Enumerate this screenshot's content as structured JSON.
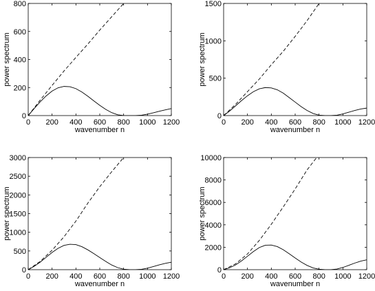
{
  "chart_data": [
    {
      "type": "line",
      "xlabel": "wavenumber n",
      "ylabel": "power spectrum",
      "xlim": [
        0,
        1200
      ],
      "ylim": [
        0,
        800
      ],
      "xticks": [
        0,
        200,
        400,
        600,
        800,
        1000,
        1200
      ],
      "yticks": [
        0,
        200,
        400,
        600,
        800
      ],
      "grid": false,
      "series": [
        {
          "style": "solid",
          "color": "#000000",
          "x": [
            0,
            50,
            100,
            150,
            200,
            250,
            300,
            350,
            400,
            450,
            500,
            550,
            600,
            650,
            700,
            750,
            800,
            850,
            900,
            950,
            1000,
            1050,
            1100,
            1150,
            1200
          ],
          "y": [
            0,
            50,
            98,
            140,
            175,
            198,
            208,
            206,
            192,
            168,
            138,
            105,
            73,
            44,
            21,
            6,
            0,
            0,
            0,
            3,
            10,
            20,
            31,
            41,
            50
          ]
        },
        {
          "style": "dashed",
          "color": "#000000",
          "x": [
            0,
            100,
            200,
            300,
            400,
            500,
            600,
            700,
            800
          ],
          "y": [
            0,
            110,
            215,
            318,
            415,
            510,
            610,
            705,
            800
          ]
        }
      ]
    },
    {
      "type": "line",
      "xlabel": "wavenumber n",
      "ylabel": "power spectrum",
      "xlim": [
        0,
        1200
      ],
      "ylim": [
        0,
        1500
      ],
      "xticks": [
        0,
        200,
        400,
        600,
        800,
        1000,
        1200
      ],
      "yticks": [
        0,
        500,
        1000,
        1500
      ],
      "grid": false,
      "series": [
        {
          "style": "solid",
          "color": "#000000",
          "x": [
            0,
            50,
            100,
            150,
            200,
            250,
            300,
            350,
            400,
            450,
            500,
            550,
            600,
            650,
            700,
            750,
            800,
            850,
            900,
            950,
            1000,
            1050,
            1100,
            1150,
            1200
          ],
          "y": [
            0,
            60,
            130,
            200,
            265,
            320,
            358,
            375,
            370,
            345,
            300,
            240,
            180,
            120,
            68,
            28,
            5,
            0,
            0,
            5,
            22,
            45,
            68,
            88,
            100
          ]
        },
        {
          "style": "dashed",
          "color": "#000000",
          "x": [
            0,
            100,
            200,
            300,
            400,
            500,
            600,
            700,
            800
          ],
          "y": [
            0,
            150,
            320,
            490,
            680,
            860,
            1060,
            1270,
            1500
          ]
        }
      ]
    },
    {
      "type": "line",
      "xlabel": "wavenumber n",
      "ylabel": "power spectrum",
      "xlim": [
        0,
        1200
      ],
      "ylim": [
        0,
        3000
      ],
      "xticks": [
        0,
        200,
        400,
        600,
        800,
        1000,
        1200
      ],
      "yticks": [
        0,
        500,
        1000,
        1500,
        2000,
        2500,
        3000
      ],
      "grid": false,
      "series": [
        {
          "style": "solid",
          "color": "#000000",
          "x": [
            0,
            50,
            100,
            150,
            200,
            250,
            300,
            350,
            400,
            450,
            500,
            550,
            600,
            650,
            700,
            750,
            800,
            850,
            900,
            950,
            1000,
            1050,
            1100,
            1150,
            1200
          ],
          "y": [
            0,
            90,
            200,
            330,
            460,
            570,
            650,
            680,
            670,
            615,
            530,
            430,
            325,
            220,
            125,
            55,
            12,
            0,
            0,
            10,
            40,
            85,
            130,
            170,
            200
          ]
        },
        {
          "style": "dashed",
          "color": "#000000",
          "x": [
            0,
            100,
            200,
            300,
            400,
            500,
            600,
            700,
            800
          ],
          "y": [
            0,
            220,
            520,
            880,
            1300,
            1780,
            2220,
            2620,
            3000
          ]
        }
      ]
    },
    {
      "type": "line",
      "xlabel": "wavenumber n",
      "ylabel": "power spectrum",
      "xlim": [
        0,
        1200
      ],
      "ylim": [
        0,
        10000
      ],
      "xticks": [
        0,
        200,
        400,
        600,
        800,
        1000,
        1200
      ],
      "yticks": [
        0,
        2000,
        4000,
        6000,
        8000,
        10000
      ],
      "grid": false,
      "series": [
        {
          "style": "solid",
          "color": "#000000",
          "x": [
            0,
            50,
            100,
            150,
            200,
            250,
            300,
            350,
            400,
            450,
            500,
            550,
            600,
            650,
            700,
            750,
            800,
            850,
            900,
            950,
            1000,
            1050,
            1100,
            1150,
            1200
          ],
          "y": [
            0,
            170,
            420,
            780,
            1200,
            1620,
            1980,
            2180,
            2200,
            2060,
            1780,
            1420,
            1040,
            680,
            380,
            160,
            40,
            0,
            0,
            60,
            200,
            390,
            590,
            760,
            880
          ]
        },
        {
          "style": "dashed",
          "color": "#000000",
          "x": [
            0,
            100,
            200,
            300,
            400,
            500,
            600,
            700,
            780
          ],
          "y": [
            0,
            520,
            1400,
            2620,
            4050,
            5600,
            7200,
            8900,
            10000
          ]
        }
      ]
    }
  ]
}
